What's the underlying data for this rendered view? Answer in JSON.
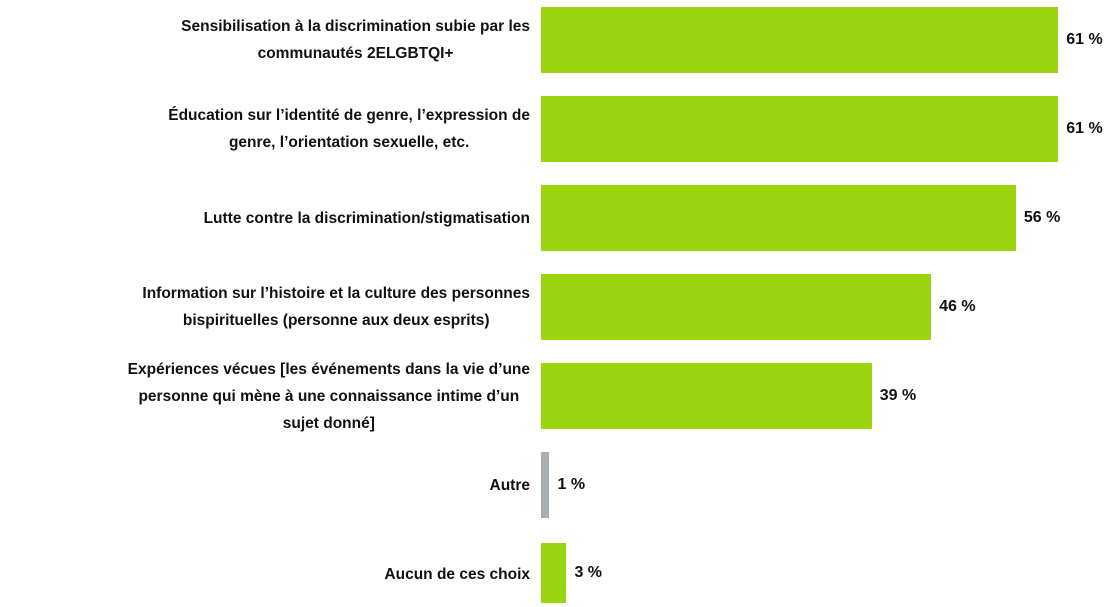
{
  "chart_data": {
    "type": "bar",
    "orientation": "horizontal",
    "categories": [
      "Sensibilisation à la discrimination subie par les\ncommunautés 2ELGBTQI+",
      "Éducation sur l’identité de genre, l’expression de\ngenre, l’orientation sexuelle, etc.",
      "Lutte contre la discrimination/stigmatisation",
      "Information sur l’histoire et la culture des personnes\nbispirituelles (personne aux deux esprits)",
      "Expériences vécues [les événements dans la vie d’une\npersonne qui mène à une connaissance intime d’un\nsujet donné]",
      "Autre",
      "Aucun de ces choix"
    ],
    "values": [
      61,
      61,
      56,
      46,
      39,
      1,
      3
    ],
    "value_labels": [
      "61 %",
      "61 %",
      "56 %",
      "46 %",
      "39 %",
      "1 %",
      "3 %"
    ],
    "colors": [
      "#99d40f",
      "#99d40f",
      "#99d40f",
      "#99d40f",
      "#99d40f",
      "#a7afb2",
      "#99d40f"
    ]
  }
}
